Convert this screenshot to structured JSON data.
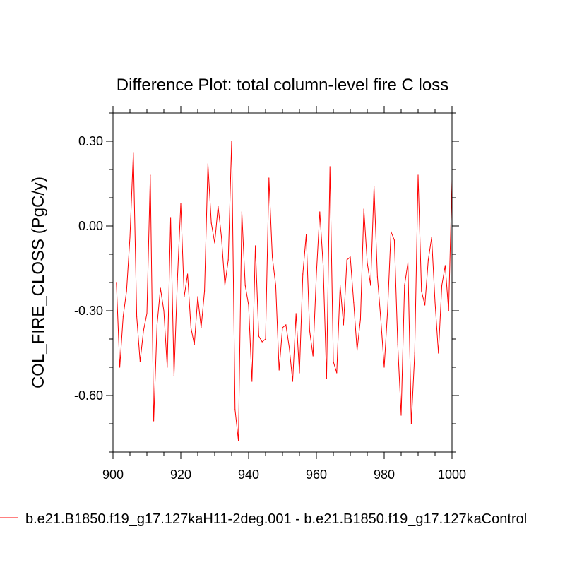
{
  "chart_data": {
    "type": "line",
    "title": "Difference Plot: total column-level fire C loss",
    "xlabel": "",
    "ylabel": "COL_FIRE_CLOSS  (PgC/y)",
    "xlim": [
      900,
      1000
    ],
    "ylim": [
      -0.8,
      0.4
    ],
    "x_ticks": [
      900,
      920,
      940,
      960,
      980,
      1000
    ],
    "x_tick_labels": [
      "900",
      "920",
      "940",
      "960",
      "980",
      "1000"
    ],
    "y_ticks": [
      0.3,
      0.0,
      -0.3,
      -0.6
    ],
    "y_tick_labels": [
      "0.30",
      "0.00",
      "-0.30",
      "-0.60"
    ],
    "grid": false,
    "legend_position": "bottom",
    "series": [
      {
        "name": "b.e21.B1850.f19_g17.127kaH11-2deg.001 - b.e21.B1850.f19_g17.127kaControl",
        "color": "#ff0000",
        "x": [
          901,
          902,
          903,
          904,
          905,
          906,
          907,
          908,
          909,
          910,
          911,
          912,
          913,
          914,
          915,
          916,
          917,
          918,
          919,
          920,
          921,
          922,
          923,
          924,
          925,
          926,
          927,
          928,
          929,
          930,
          931,
          932,
          933,
          934,
          935,
          936,
          937,
          938,
          939,
          940,
          941,
          942,
          943,
          944,
          945,
          946,
          947,
          948,
          949,
          950,
          951,
          952,
          953,
          954,
          955,
          956,
          957,
          958,
          959,
          960,
          961,
          962,
          963,
          964,
          965,
          966,
          967,
          968,
          969,
          970,
          971,
          972,
          973,
          974,
          975,
          976,
          977,
          978,
          979,
          980,
          981,
          982,
          983,
          984,
          985,
          986,
          987,
          988,
          989,
          990,
          991,
          992,
          993,
          994,
          995,
          996,
          997,
          998,
          999,
          1000
        ],
        "values": [
          -0.2,
          -0.5,
          -0.32,
          -0.23,
          -0.04,
          0.26,
          -0.32,
          -0.48,
          -0.37,
          -0.31,
          0.18,
          -0.69,
          -0.35,
          -0.22,
          -0.3,
          -0.5,
          0.03,
          -0.53,
          -0.19,
          0.08,
          -0.25,
          -0.17,
          -0.36,
          -0.42,
          -0.25,
          -0.36,
          -0.23,
          0.22,
          0.01,
          -0.06,
          0.07,
          -0.04,
          -0.21,
          -0.12,
          0.3,
          -0.65,
          -0.76,
          0.05,
          -0.21,
          -0.28,
          -0.55,
          -0.07,
          -0.39,
          -0.41,
          -0.4,
          0.17,
          -0.11,
          -0.21,
          -0.51,
          -0.36,
          -0.35,
          -0.43,
          -0.55,
          -0.31,
          -0.52,
          -0.17,
          -0.03,
          -0.37,
          -0.46,
          -0.17,
          0.05,
          -0.14,
          -0.54,
          0.21,
          -0.48,
          -0.52,
          -0.21,
          -0.35,
          -0.12,
          -0.11,
          -0.27,
          -0.44,
          -0.33,
          0.06,
          -0.13,
          -0.21,
          0.14,
          -0.18,
          -0.33,
          -0.5,
          -0.3,
          -0.02,
          -0.05,
          -0.42,
          -0.67,
          -0.21,
          -0.13,
          -0.7,
          -0.45,
          0.18,
          -0.23,
          -0.28,
          -0.12,
          -0.04,
          -0.27,
          -0.45,
          -0.21,
          -0.14,
          -0.3,
          0.16
        ]
      }
    ]
  }
}
